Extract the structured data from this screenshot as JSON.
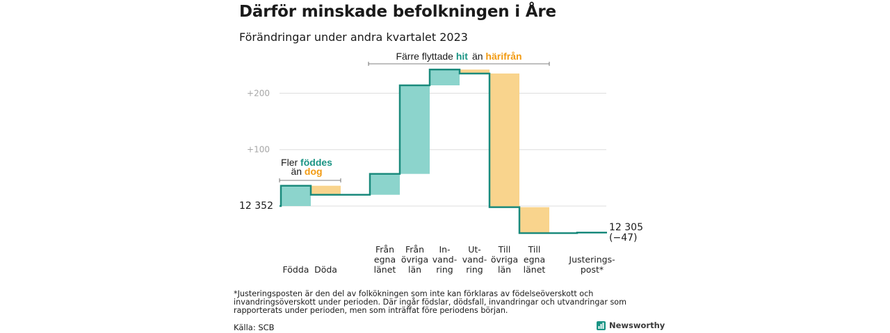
{
  "header": {
    "title": "Därför minskade befolkningen i Åre",
    "subtitle": "Förändringar under andra kvartalet 2023"
  },
  "colors": {
    "increase_fill": "#8cd4cc",
    "decrease_fill": "#f9d48d",
    "step_line": "#1a8a7c",
    "accent_green": "#1a9484",
    "accent_orange": "#f29b13",
    "gridline": "#dddddd"
  },
  "chart_data": {
    "type": "waterfall",
    "start": {
      "label": "12  352",
      "value": 12352
    },
    "end": {
      "label_value": "12 305",
      "label_change": "(−47)",
      "value": 12305
    },
    "y_ticks": [
      {
        "value": 100,
        "label": "+100"
      },
      {
        "value": 200,
        "label": "+200"
      }
    ],
    "steps": [
      {
        "label": [
          "Födda"
        ],
        "change": 36
      },
      {
        "label": [
          "Döda"
        ],
        "change": -16
      },
      {
        "label": [
          "Från",
          "egna",
          "länet"
        ],
        "change": 37
      },
      {
        "label": [
          "Från",
          "övriga",
          "län"
        ],
        "change": 157
      },
      {
        "label": [
          "In-",
          "vand-",
          "ring"
        ],
        "change": 28
      },
      {
        "label": [
          "Ut-",
          "vand-",
          "ring"
        ],
        "change": -7
      },
      {
        "label": [
          "Till",
          "övriga",
          "län"
        ],
        "change": -237
      },
      {
        "label": [
          "Till",
          "egna",
          "länet"
        ],
        "change": -46
      },
      {
        "label": [
          "Justerings-",
          "post*"
        ],
        "change": 1,
        "is_adjustment": true
      }
    ],
    "annotations": [
      {
        "prefix": "Fler ",
        "highlight1": "föddes",
        "line2_prefix": "än ",
        "highlight2": "dog"
      },
      {
        "prefix": "Färre flyttade ",
        "highlight1": "hit",
        "middle": "än ",
        "highlight2": "härifrån"
      }
    ]
  },
  "footer": {
    "footnote": "*Justeringsposten är den del av folkökningen som inte kan förklaras av födelseöverskott och invandringsöverskott under perioden. Där ingår födslar, dödsfall, invandringar och utvandringar som rapporterats under perioden, men som inträffat före periodens början.",
    "source": "Källa: SCB",
    "brand": "Newsworthy",
    "brand_icon": "bar-chart-logo-icon"
  }
}
